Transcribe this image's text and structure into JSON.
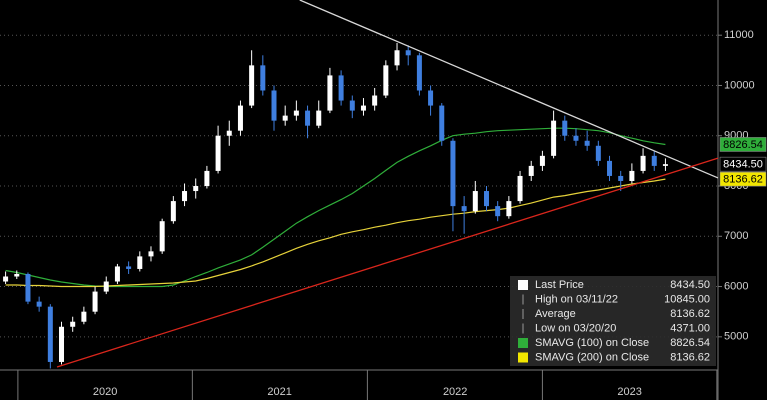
{
  "chart_data": {
    "type": "candlestick",
    "xlim": [
      -0.5,
      63.7
    ],
    "ylim": [
      4340,
      11700
    ],
    "yticks": [
      5000,
      6000,
      7000,
      8000,
      9000,
      10000,
      11000
    ],
    "xticks": [
      {
        "value": 8.9,
        "label": "2020"
      },
      {
        "value": 24.5,
        "label": "2021"
      },
      {
        "value": 40.2,
        "label": "2022"
      },
      {
        "value": 55.8,
        "label": "2023"
      }
    ],
    "grid": true,
    "up_color": "#ffffff",
    "down_color": "#3f7fe0",
    "open": [
      6100,
      6200,
      6250,
      5700,
      5600,
      4500,
      5200,
      5300,
      5500,
      5900,
      6100,
      6400,
      6350,
      6600,
      6700,
      7300,
      7700,
      7900,
      8000,
      8300,
      9000,
      9100,
      9600,
      10400,
      9900,
      9300,
      9400,
      9500,
      9200,
      9500,
      10200,
      9700,
      9500,
      9600,
      9800,
      10400,
      10700,
      10600,
      9900,
      9600,
      8900,
      7600,
      7500,
      7900,
      7600,
      7400,
      7700,
      8200,
      8400,
      8600,
      9300,
      9000,
      8900,
      8800,
      8500,
      8200,
      8100,
      8300,
      8600,
      8400
    ],
    "high": [
      6300,
      6320,
      6280,
      5800,
      5650,
      5300,
      5400,
      5600,
      6000,
      6200,
      6450,
      6500,
      6700,
      6800,
      7350,
      7800,
      8050,
      8150,
      8400,
      9200,
      9300,
      9700,
      10700,
      10600,
      10000,
      9600,
      9700,
      9600,
      9700,
      10350,
      10300,
      9800,
      9750,
      9950,
      10500,
      10845,
      10800,
      10650,
      10000,
      9650,
      8950,
      7800,
      8100,
      8000,
      7700,
      7800,
      8300,
      8500,
      8700,
      9500,
      9400,
      9150,
      9100,
      8900,
      8600,
      8300,
      8450,
      8750,
      8700,
      8550
    ],
    "low": [
      6050,
      6150,
      5650,
      5500,
      4371,
      4450,
      5100,
      5250,
      5450,
      5850,
      6050,
      6250,
      6300,
      6500,
      6650,
      7250,
      7600,
      7750,
      7950,
      8250,
      8800,
      9000,
      9550,
      9800,
      9100,
      9200,
      9300,
      8950,
      9150,
      9450,
      9600,
      9350,
      9400,
      9500,
      9750,
      10300,
      10400,
      9800,
      9400,
      8800,
      7100,
      7050,
      7450,
      7500,
      7300,
      7350,
      7650,
      8100,
      8300,
      8550,
      8900,
      8800,
      8700,
      8400,
      8100,
      7900,
      8050,
      8250,
      8300,
      8300
    ],
    "close": [
      6200,
      6250,
      5700,
      5600,
      4500,
      5200,
      5300,
      5500,
      5900,
      6100,
      6400,
      6350,
      6600,
      6700,
      7300,
      7700,
      7900,
      8000,
      8300,
      9000,
      9100,
      9600,
      10400,
      9900,
      9300,
      9400,
      9500,
      9200,
      9500,
      10200,
      9700,
      9500,
      9600,
      9800,
      10400,
      10700,
      10600,
      9900,
      9600,
      8900,
      7600,
      7500,
      7900,
      7600,
      7400,
      7700,
      8200,
      8400,
      8600,
      9300,
      9000,
      8900,
      8800,
      8500,
      8200,
      8100,
      8300,
      8600,
      8400,
      8434.5
    ],
    "series": [
      {
        "color": "#2fae3a",
        "values": [
          6320,
          6280,
          6230,
          6180,
          6130,
          6090,
          6060,
          6030,
          6010,
          6000,
          6000,
          6000,
          6000,
          6000,
          6000,
          6030,
          6110,
          6200,
          6280,
          6370,
          6450,
          6530,
          6630,
          6780,
          6940,
          7100,
          7260,
          7390,
          7510,
          7620,
          7730,
          7850,
          8000,
          8150,
          8310,
          8470,
          8590,
          8700,
          8800,
          8910,
          9000,
          9030,
          9050,
          9080,
          9100,
          9110,
          9120,
          9130,
          9140,
          9150,
          9150,
          9140,
          9120,
          9100,
          9060,
          9000,
          8950,
          8900,
          8860,
          8826.54
        ]
      },
      {
        "color": "#e6d23a",
        "values": [
          6030,
          6030,
          6020,
          6020,
          6010,
          6000,
          6000,
          6000,
          6000,
          6010,
          6020,
          6030,
          6040,
          6050,
          6060,
          6070,
          6090,
          6110,
          6160,
          6220,
          6280,
          6340,
          6410,
          6490,
          6580,
          6670,
          6760,
          6840,
          6910,
          6970,
          7040,
          7090,
          7130,
          7180,
          7220,
          7270,
          7310,
          7340,
          7380,
          7410,
          7440,
          7460,
          7490,
          7510,
          7530,
          7560,
          7610,
          7660,
          7720,
          7780,
          7810,
          7850,
          7890,
          7920,
          7960,
          8000,
          8040,
          8070,
          8100,
          8136.62
        ]
      }
    ],
    "trendlines": [
      {
        "color": "#d8d8d8",
        "x": [
          26.3,
          63.7
        ],
        "y": [
          11700,
          8160
        ]
      },
      {
        "color": "#d9261c",
        "x": [
          4.6,
          63.7
        ],
        "y": [
          4400,
          8555
        ]
      }
    ],
    "price_tags": [
      {
        "value": 8826.54,
        "label": "8826.54",
        "color": "#2fae3a",
        "text_color": "#000000"
      },
      {
        "value": 8434.5,
        "label": "8434.50",
        "color": "#000000",
        "text_color": "#ffffff"
      },
      {
        "value": 8136.62,
        "label": "8136.62",
        "color": "#f2e600",
        "text_color": "#000000"
      }
    ],
    "legend": [
      {
        "label": "Last Price",
        "value": "8434.50",
        "color": "#ffffff",
        "icon": "box"
      },
      {
        "label": "High on 03/11/22",
        "value": "10845.00",
        "color": "#9a9a9a",
        "icon": "line"
      },
      {
        "label": "Average",
        "value": "8136.62",
        "color": "#9a9a9a",
        "icon": "line"
      },
      {
        "label": "Low on 03/20/20",
        "value": "4371.00",
        "color": "#9a9a9a",
        "icon": "line"
      },
      {
        "label": "SMAVG (100)  on Close",
        "value": "8826.54",
        "color": "#2fae3a",
        "icon": "box"
      },
      {
        "label": "SMAVG (200)  on Close",
        "value": "8136.62",
        "color": "#f2e600",
        "icon": "box"
      }
    ]
  }
}
